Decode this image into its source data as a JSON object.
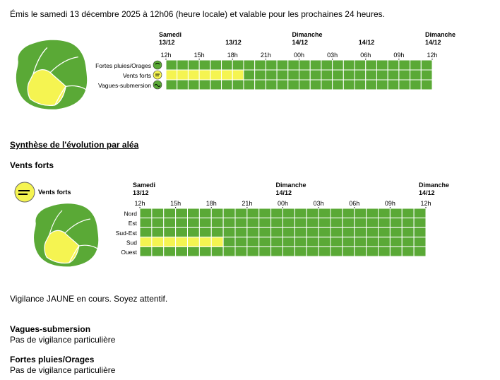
{
  "header": {
    "issued": "Émis le samedi 13 décembre 2025 à 12h06 (heure locale) et valable pour les prochaines 24 heures."
  },
  "overview": {
    "days": [
      {
        "name": "Samedi",
        "date": "13/12",
        "at": 0
      },
      {
        "name": "",
        "date": "13/12",
        "at": 6
      },
      {
        "name": "Dimanche",
        "date": "14/12",
        "at": 12
      },
      {
        "name": "",
        "date": "14/12",
        "at": 18
      },
      {
        "name": "Dimanche",
        "date": "14/12",
        "at": 24
      }
    ],
    "hours": [
      "12h",
      "15h",
      "18h",
      "21h",
      "00h",
      "03h",
      "06h",
      "09h",
      "12h"
    ],
    "rows": [
      {
        "label": "Fortes pluies/Orages",
        "icon": "rain-storm-icon",
        "yellow_hours": 0
      },
      {
        "label": "Vents forts",
        "icon": "wind-icon",
        "yellow_hours": 7
      },
      {
        "label": "Vagues-submersion",
        "icon": "waves-icon",
        "yellow_hours": 0
      }
    ]
  },
  "synthese": {
    "title": "Synthèse de l'évolution par aléa"
  },
  "vents": {
    "title": "Vents forts",
    "badge_label": "Vents forts",
    "days": [
      {
        "name": "Samedi",
        "date": "13/12",
        "at": 0
      },
      {
        "name": "Dimanche",
        "date": "14/12",
        "at": 12
      },
      {
        "name": "Dimanche",
        "date": "14/12",
        "at": 24
      }
    ],
    "hours": [
      "12h",
      "15h",
      "18h",
      "21h",
      "00h",
      "03h",
      "06h",
      "09h",
      "12h"
    ],
    "rows": [
      {
        "label": "Nord",
        "yellow_hours": 0
      },
      {
        "label": "Est",
        "yellow_hours": 0
      },
      {
        "label": "Sud-Est",
        "yellow_hours": 0
      },
      {
        "label": "Sud",
        "yellow_hours": 7
      },
      {
        "label": "Ouest",
        "yellow_hours": 0
      }
    ],
    "status": "Vigilance JAUNE en cours. Soyez attentif."
  },
  "vagues": {
    "title": "Vagues-submersion",
    "status": "Pas de vigilance particulière"
  },
  "pluies": {
    "title": "Fortes pluies/Orages",
    "status": "Pas de vigilance particulière"
  },
  "colors": {
    "green": "#5aa936",
    "yellow": "#f5f451",
    "grid": "#ffffff"
  }
}
